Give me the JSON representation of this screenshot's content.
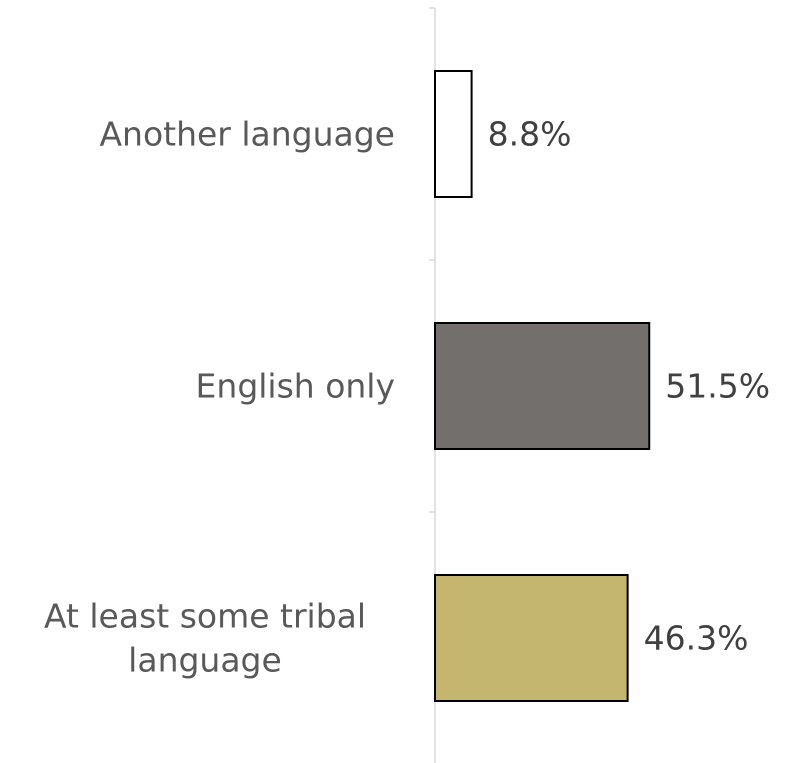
{
  "chart_data": {
    "type": "bar",
    "orientation": "horizontal",
    "title": "",
    "xlabel": "",
    "ylabel": "",
    "categories": [
      "Another language",
      "English only",
      "At least some tribal language"
    ],
    "values": [
      8.8,
      51.5,
      46.3
    ],
    "value_labels": [
      "8.8%",
      "51.5%",
      "46.3%"
    ],
    "colors": [
      "#ffffff",
      "#736f6d",
      "#c4b66e"
    ],
    "xlim": [
      0,
      100
    ],
    "grid": false,
    "legend": "none"
  }
}
